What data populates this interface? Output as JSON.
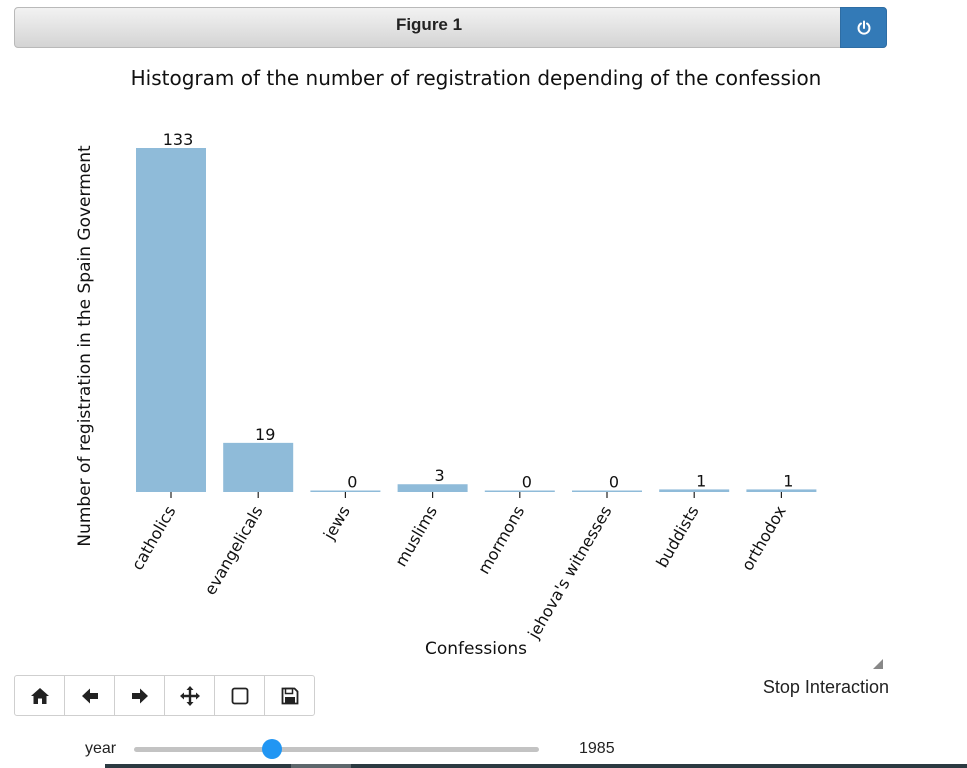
{
  "figure": {
    "title": "Figure 1"
  },
  "controls": {
    "stop_label": "Stop Interaction",
    "toolbar": [
      {
        "name": "home-icon"
      },
      {
        "name": "back-arrow-icon"
      },
      {
        "name": "forward-arrow-icon"
      },
      {
        "name": "pan-move-icon"
      },
      {
        "name": "zoom-rectangle-icon"
      },
      {
        "name": "save-floppy-icon"
      }
    ],
    "slider": {
      "label": "year",
      "value": "1985",
      "fraction": 0.34
    }
  },
  "chart_data": {
    "type": "bar",
    "title": "Histogram of the number of registration depending of the confession",
    "xlabel": "Confessions",
    "ylabel": "Number of registration in the Spain Goverment",
    "categories": [
      "catholics",
      "evangelicals",
      "jews",
      "muslims",
      "mormons",
      "jehova's witnesses",
      "buddists",
      "orthodox"
    ],
    "values": [
      133,
      19,
      0,
      3,
      0,
      0,
      1,
      1
    ],
    "data_labels": [
      "133",
      "19",
      "0",
      "3",
      "0",
      "0",
      "1",
      "1"
    ],
    "bar_color": "#8fbbd9",
    "grid": false
  }
}
